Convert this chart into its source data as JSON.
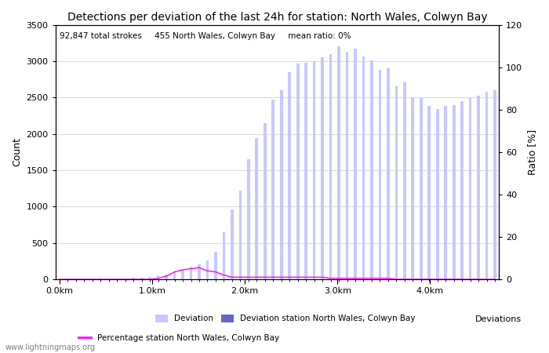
{
  "title": "Detections per deviation of the last 24h for station: North Wales, Colwyn Bay",
  "subtitle": "92,847 total strokes     455 North Wales, Colwyn Bay     mean ratio: 0%",
  "ylabel_left": "Count",
  "ylabel_right": "Ratio [%]",
  "ylim_left": [
    0,
    3500
  ],
  "ylim_right": [
    0,
    120
  ],
  "xtick_labels": [
    "0.0km",
    "1.0km",
    "2.0km",
    "3.0km",
    "4.0km"
  ],
  "yticks_left": [
    0,
    500,
    1000,
    1500,
    2000,
    2500,
    3000,
    3500
  ],
  "yticks_right": [
    0,
    20,
    40,
    60,
    80,
    100,
    120
  ],
  "bar_color_light": "#c8c8ff",
  "bar_color_dark": "#6666cc",
  "line_color": "#ff00ff",
  "background_color": "#ffffff",
  "grid_color": "#cccccc",
  "watermark": "www.lightningmaps.org",
  "bar_width": 0.35,
  "deviation_bars": [
    2,
    3,
    4,
    5,
    6,
    8,
    10,
    12,
    15,
    20,
    25,
    35,
    50,
    70,
    95,
    130,
    170,
    210,
    260,
    380,
    650,
    960,
    1220,
    1650,
    1940,
    2150,
    2470,
    2600,
    2850,
    2970,
    2980,
    3000,
    3050,
    3100,
    3200,
    3130,
    3170,
    3060,
    3010,
    2880,
    2900,
    2650,
    2710,
    2500,
    2490,
    2380,
    2340,
    2380,
    2390,
    2450,
    2490,
    2520,
    2580,
    2600
  ],
  "ratio_line": [
    0,
    0,
    0,
    0,
    0,
    0,
    0,
    0,
    0,
    0,
    0,
    0,
    0.5,
    1.5,
    3.5,
    4.5,
    5,
    5.5,
    4,
    3.5,
    2,
    1,
    1,
    1,
    1,
    1,
    1,
    1,
    1,
    1,
    1,
    1,
    1,
    0.5,
    0.5,
    0.5,
    0.5,
    0.5,
    0.5,
    0.5,
    0.5,
    0,
    0,
    0,
    0,
    0,
    0,
    0,
    0,
    0,
    0,
    0,
    0,
    0
  ],
  "n_bars": 54,
  "x_max_km": 4.7,
  "km_per_tick": 1.0
}
